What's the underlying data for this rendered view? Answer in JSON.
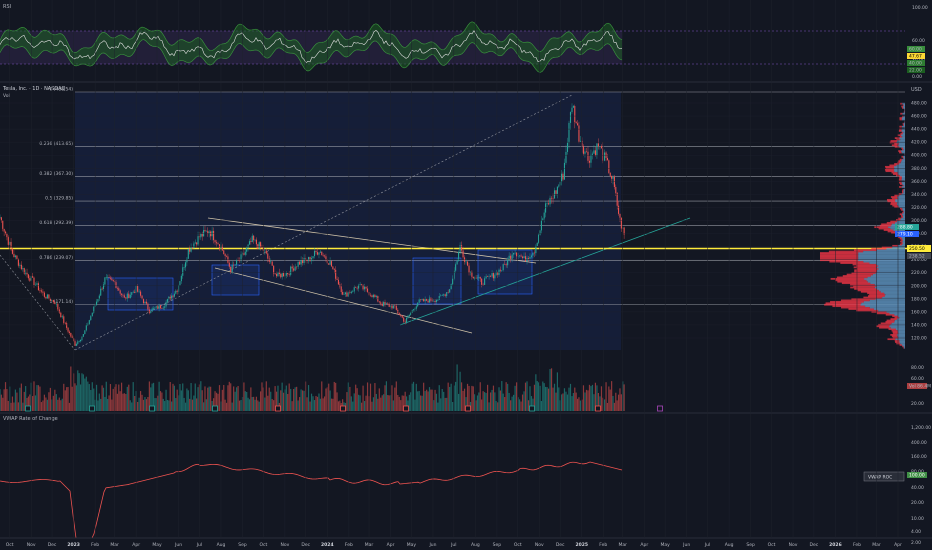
{
  "window": {
    "indicator_label": "RSI",
    "chart_title": "Tesla, Inc. · 1D · NASDAQ",
    "vol_label": "Vol",
    "currency": "USD",
    "roc_title": "VWAP Rate of Change",
    "roc_badge": "VWAP ROC"
  },
  "colors": {
    "bg": "#131722",
    "grid": "#1e222d",
    "candle_up": "#26a69a",
    "candle_down": "#ef5350",
    "yellow": "#ffeb3b",
    "fib": "#9598a1",
    "trend": "#d1c4a9",
    "teal_trend": "#26a69a",
    "channel": "#2962ff",
    "rsi_band": "#7e57c2",
    "rsi_fill": "#1b5e20",
    "roc_line": "#ef5350",
    "profile_blue": "#5b8fb9",
    "profile_red": "#f23645"
  },
  "chart_data": [
    {
      "type": "line",
      "title": "RSI",
      "ylim": [
        0,
        100
      ],
      "y_ticks": [
        "100.00",
        "60.00",
        "40.00",
        "0.00"
      ],
      "badges": [
        "60.00",
        "47.67",
        "40.00",
        "22.00"
      ]
    },
    {
      "type": "candlestick",
      "title": "Tesla, Inc. · 1D · NASDAQ",
      "ylabel": "USD",
      "ylim": [
        100,
        500
      ],
      "y_ticks": [
        "480.00",
        "460.00",
        "440.00",
        "420.00",
        "400.00",
        "380.00",
        "360.00",
        "340.00",
        "320.00",
        "300.00",
        "280.00",
        "260.00",
        "240.00",
        "220.00",
        "200.00",
        "180.00",
        "160.00",
        "140.00",
        "120.00"
      ],
      "x_ticks": [
        "Oct",
        "Nov",
        "Dec",
        "2023",
        "Feb",
        "Mar",
        "Apr",
        "May",
        "Jun",
        "Jul",
        "Aug",
        "Sep",
        "Oct",
        "Nov",
        "Dec",
        "2024",
        "Feb",
        "Mar",
        "Apr",
        "May",
        "Jun",
        "Jul",
        "Aug",
        "Sep",
        "Oct",
        "Nov",
        "Dec",
        "2025",
        "Feb",
        "Mar",
        "Apr",
        "May",
        "Jun",
        "Jul",
        "Aug",
        "Sep",
        "Oct",
        "Nov",
        "Dec",
        "2026",
        "Feb",
        "Mar",
        "Apr"
      ],
      "fib_levels": [
        {
          "label": "0 (488.54)",
          "value": 488.54
        },
        {
          "label": "0.236 (413.65)",
          "value": 413.65
        },
        {
          "label": "0.382 (367.30)",
          "value": 367.3
        },
        {
          "label": "0.5 (329.85)",
          "value": 329.85
        },
        {
          "label": "0.618 (292.39)",
          "value": 292.39
        },
        {
          "label": "0.786 (239.07)",
          "value": 239.07
        },
        {
          "label": "1 (171.14)",
          "value": 171.14
        }
      ],
      "horizontal_line": 250.5,
      "price_badges": [
        "288.80",
        "279.10",
        "250.50",
        "238.52"
      ],
      "series_close": [
        {
          "date": "2022-09-20",
          "close": 305
        },
        {
          "date": "2022-10-05",
          "close": 250
        },
        {
          "date": "2022-10-20",
          "close": 225
        },
        {
          "date": "2022-11-05",
          "close": 205
        },
        {
          "date": "2022-11-20",
          "close": 185
        },
        {
          "date": "2022-12-05",
          "close": 175
        },
        {
          "date": "2022-12-20",
          "close": 140
        },
        {
          "date": "2023-01-03",
          "close": 110
        },
        {
          "date": "2023-01-15",
          "close": 125
        },
        {
          "date": "2023-01-30",
          "close": 165
        },
        {
          "date": "2023-02-15",
          "close": 210
        },
        {
          "date": "2023-03-01",
          "close": 205
        },
        {
          "date": "2023-03-15",
          "close": 180
        },
        {
          "date": "2023-04-01",
          "close": 195
        },
        {
          "date": "2023-04-20",
          "close": 162
        },
        {
          "date": "2023-05-10",
          "close": 170
        },
        {
          "date": "2023-05-30",
          "close": 195
        },
        {
          "date": "2023-06-15",
          "close": 255
        },
        {
          "date": "2023-07-01",
          "close": 275
        },
        {
          "date": "2023-07-15",
          "close": 285
        },
        {
          "date": "2023-08-01",
          "close": 260
        },
        {
          "date": "2023-08-15",
          "close": 225
        },
        {
          "date": "2023-09-01",
          "close": 245
        },
        {
          "date": "2023-09-15",
          "close": 270
        },
        {
          "date": "2023-10-01",
          "close": 255
        },
        {
          "date": "2023-10-20",
          "close": 215
        },
        {
          "date": "2023-11-05",
          "close": 220
        },
        {
          "date": "2023-11-20",
          "close": 235
        },
        {
          "date": "2023-12-05",
          "close": 240
        },
        {
          "date": "2023-12-20",
          "close": 255
        },
        {
          "date": "2024-01-05",
          "close": 235
        },
        {
          "date": "2024-01-25",
          "close": 185
        },
        {
          "date": "2024-02-15",
          "close": 200
        },
        {
          "date": "2024-03-01",
          "close": 190
        },
        {
          "date": "2024-03-20",
          "close": 172
        },
        {
          "date": "2024-04-05",
          "close": 168
        },
        {
          "date": "2024-04-22",
          "close": 145
        },
        {
          "date": "2024-05-10",
          "close": 175
        },
        {
          "date": "2024-05-25",
          "close": 178
        },
        {
          "date": "2024-06-10",
          "close": 180
        },
        {
          "date": "2024-06-25",
          "close": 195
        },
        {
          "date": "2024-07-10",
          "close": 260
        },
        {
          "date": "2024-07-25",
          "close": 220
        },
        {
          "date": "2024-08-10",
          "close": 205
        },
        {
          "date": "2024-08-25",
          "close": 215
        },
        {
          "date": "2024-09-10",
          "close": 228
        },
        {
          "date": "2024-09-25",
          "close": 255
        },
        {
          "date": "2024-10-10",
          "close": 240
        },
        {
          "date": "2024-10-25",
          "close": 255
        },
        {
          "date": "2024-11-10",
          "close": 320
        },
        {
          "date": "2024-11-25",
          "close": 345
        },
        {
          "date": "2024-12-05",
          "close": 370
        },
        {
          "date": "2024-12-18",
          "close": 480
        },
        {
          "date": "2024-12-28",
          "close": 430
        },
        {
          "date": "2025-01-10",
          "close": 395
        },
        {
          "date": "2025-01-25",
          "close": 415
        },
        {
          "date": "2025-02-05",
          "close": 390
        },
        {
          "date": "2025-02-15",
          "close": 360
        },
        {
          "date": "2025-02-25",
          "close": 300
        },
        {
          "date": "2025-03-05",
          "close": 270
        }
      ]
    },
    {
      "type": "line",
      "title": "VWAP Rate of Change",
      "y_ticks": [
        "1,200.00",
        "400.00",
        "160.00",
        "80.00",
        "40.00",
        "20.00",
        "10.00",
        "4.00",
        "2.00"
      ],
      "badges": [
        "100.00"
      ]
    }
  ]
}
